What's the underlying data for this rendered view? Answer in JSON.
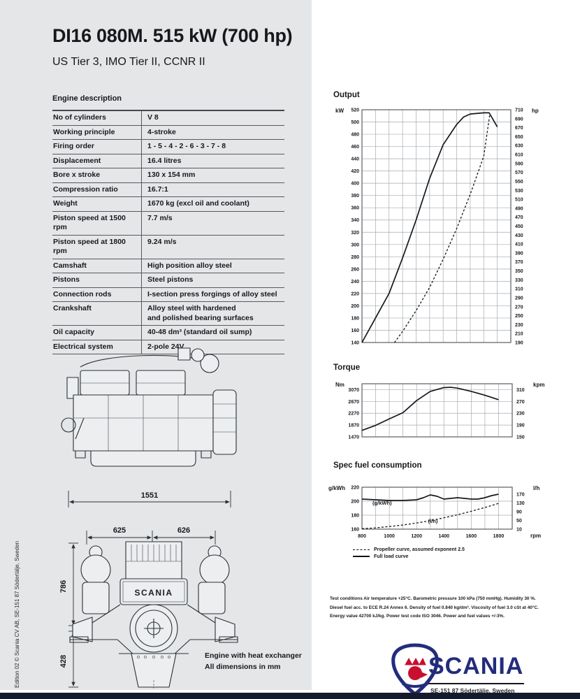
{
  "page": {
    "title": "DI16 080M. 515 kW (700 hp)",
    "subtitle": "US Tier 3, IMO Tier II, CCNR II",
    "edition_note": "Edition 02 © Scania CV AB, SE-151 87  Södertälje, Sweden",
    "brand": "SCANIA",
    "brand_color": "#232c7c",
    "footer_address": "SE-151 87  Södertälje, Sweden"
  },
  "engine_description": {
    "heading": "Engine description",
    "rows": [
      {
        "label": "No of cylinders",
        "value": "V 8"
      },
      {
        "label": "Working principle",
        "value": "4-stroke"
      },
      {
        "label": "Firing order",
        "value": "1 - 5 - 4 - 2 - 6 - 3 - 7 - 8"
      },
      {
        "label": "Displacement",
        "value": "16.4 litres"
      },
      {
        "label": "Bore x stroke",
        "value": "130 x 154 mm"
      },
      {
        "label": "Compression ratio",
        "value": "16.7:1"
      },
      {
        "label": "Weight",
        "value": "1670 kg (excl oil and coolant)"
      },
      {
        "label": "Piston speed at 1500 rpm",
        "value": "7.7 m/s"
      },
      {
        "label": "Piston speed at 1800 rpm",
        "value": "9.24 m/s"
      },
      {
        "label": "Camshaft",
        "value": "High position alloy steel"
      },
      {
        "label": "Pistons",
        "value": "Steel pistons"
      },
      {
        "label": "Connection rods",
        "value": "I-section press forgings of alloy steel"
      },
      {
        "label": "Crankshaft",
        "value": "Alloy steel with hardened\nand polished bearing surfaces"
      },
      {
        "label": "Oil capacity",
        "value": "40-48 dm³ (standard oil sump)"
      },
      {
        "label": "Electrical system",
        "value": "2-pole 24V"
      }
    ]
  },
  "drawings": {
    "side_view_length": "1551",
    "front_width_left": "625",
    "front_width_right": "626",
    "front_height_upper": "786",
    "front_height_lower": "428",
    "engine_label": "SCANIA",
    "caption_line1": "Engine with heat exchanger",
    "caption_line2": "All dimensions in mm"
  },
  "legend": [
    {
      "style": "dashed",
      "label": "Propeller curve, assumed exponent 2.5"
    },
    {
      "style": "solid",
      "label": "Full load curve"
    }
  ],
  "test_conditions": "Test conditions Air temperature +25°C. Barometric pressure 100 kPa (750 mmHg). Humidity 30 %. Diesel fuel acc. to ECE R.24 Annex 6. Density of fuel 0.840 kg/dm³. Viscosity of fuel 3.0 cSt at 40°C. Energy value 42700 kJ/kg. Power test code ISO 3046. Power and fuel values +/-3%.",
  "chart_data": [
    {
      "id": "output",
      "type": "line",
      "title": "Output",
      "unit_left": "kW",
      "unit_right": "hp",
      "left_ticks": [
        520,
        500,
        480,
        460,
        440,
        420,
        400,
        380,
        360,
        340,
        320,
        300,
        280,
        260,
        240,
        220,
        200,
        180,
        160,
        140
      ],
      "right_ticks": [
        710,
        690,
        670,
        650,
        630,
        610,
        590,
        570,
        550,
        530,
        510,
        490,
        470,
        450,
        430,
        410,
        390,
        370,
        350,
        330,
        310,
        290,
        270,
        250,
        230,
        210,
        190
      ],
      "x_min": 800,
      "x_max": 1900,
      "x_grid_step": 100,
      "y_min": 140,
      "y_max": 520,
      "series": [
        {
          "name": "Full load curve",
          "style": "solid",
          "scale": "left",
          "x": [
            800,
            900,
            1000,
            1100,
            1200,
            1300,
            1400,
            1500,
            1550,
            1600,
            1700,
            1740,
            1800
          ],
          "y": [
            140,
            180,
            220,
            278,
            340,
            408,
            463,
            496,
            508,
            513,
            515,
            515,
            492
          ]
        },
        {
          "name": "Propeller curve",
          "style": "dashed",
          "scale": "left",
          "x": [
            1040,
            1100,
            1200,
            1300,
            1400,
            1500,
            1600,
            1700,
            1745
          ],
          "y": [
            140,
            158,
            192,
            230,
            276,
            326,
            382,
            444,
            513
          ]
        }
      ]
    },
    {
      "id": "torque",
      "type": "line",
      "title": "Torque",
      "unit_left": "Nm",
      "unit_right": "kpm",
      "left_ticks": [
        3070,
        2670,
        2270,
        1870,
        1470
      ],
      "right_ticks": [
        310,
        270,
        230,
        190,
        150
      ],
      "x_min": 800,
      "x_max": 1900,
      "x_grid_step": 100,
      "y_min": 1470,
      "y_max": 3270,
      "series": [
        {
          "name": "Full load torque",
          "style": "solid",
          "scale": "left",
          "x": [
            800,
            900,
            1000,
            1100,
            1200,
            1300,
            1400,
            1450,
            1500,
            1600,
            1700,
            1800
          ],
          "y": [
            1690,
            1860,
            2080,
            2290,
            2700,
            3010,
            3140,
            3150,
            3120,
            3010,
            2880,
            2730
          ]
        }
      ]
    },
    {
      "id": "fuel",
      "type": "line",
      "title": "Spec fuel consumption",
      "unit_left": "g/kWh",
      "unit_right": "l/h",
      "left_ticks": [
        220,
        200,
        180,
        160
      ],
      "right_ticks": [
        170,
        130,
        90,
        50,
        10
      ],
      "x_ticks": [
        800,
        1000,
        1200,
        1400,
        1600,
        1800
      ],
      "x_unit": "rpm",
      "x_min": 800,
      "x_max": 1900,
      "x_grid_step": 100,
      "y_min": 160,
      "y_max": 220,
      "annotations": [
        {
          "text": "(g/kWh)",
          "fx": 0.07,
          "fy": 0.42
        },
        {
          "text": "(l/h)",
          "fx": 0.44,
          "fy": 0.85
        }
      ],
      "series": [
        {
          "name": "Full load curve (g/kWh)",
          "style": "solid",
          "scale": "left",
          "x": [
            800,
            900,
            1000,
            1100,
            1200,
            1250,
            1300,
            1350,
            1400,
            1450,
            1500,
            1550,
            1600,
            1650,
            1700,
            1750,
            1800
          ],
          "y": [
            203,
            202,
            201,
            201,
            202,
            205,
            209,
            207,
            203,
            204,
            205,
            204,
            203,
            203,
            205,
            208,
            210
          ]
        },
        {
          "name": "Propeller curve (l/h)",
          "style": "dashed",
          "scale": "right",
          "x": [
            800,
            900,
            1000,
            1100,
            1200,
            1300,
            1400,
            1500,
            1600,
            1700,
            1800
          ],
          "y": [
            12,
            16,
            22,
            29,
            38,
            49,
            62,
            76,
            92,
            109,
            128
          ]
        }
      ]
    }
  ]
}
